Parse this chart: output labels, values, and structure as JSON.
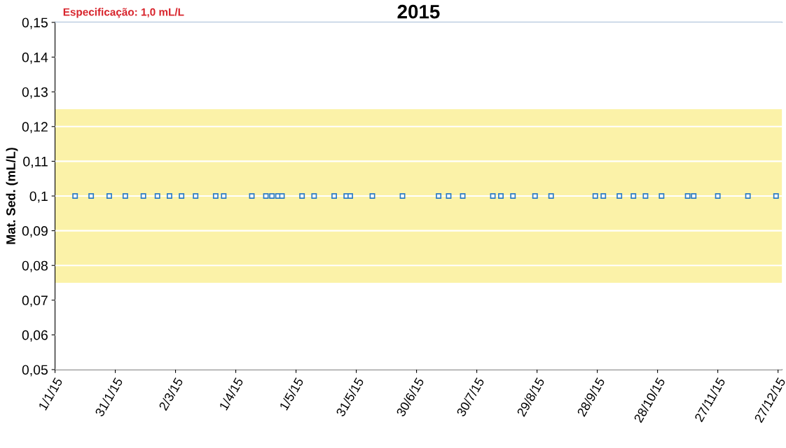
{
  "chart_data": {
    "type": "scatter",
    "title": "2015",
    "ylabel": "Mat. Sed. (mL/L)",
    "annotations": [
      "Especificação: 1,0 mL/L"
    ],
    "marker": "square",
    "grid": "y",
    "series": [
      {
        "color": "#2b7bc4",
        "x": [
          "2015-01-11",
          "2015-01-19",
          "2015-01-28",
          "2015-02-05",
          "2015-02-14",
          "2015-02-21",
          "2015-02-27",
          "2015-03-05",
          "2015-03-12",
          "2015-03-22",
          "2015-03-26",
          "2015-04-09",
          "2015-04-16",
          "2015-04-19",
          "2015-04-22",
          "2015-04-24",
          "2015-05-04",
          "2015-05-10",
          "2015-05-20",
          "2015-05-26",
          "2015-05-28",
          "2015-06-08",
          "2015-06-23",
          "2015-07-11",
          "2015-07-16",
          "2015-07-23",
          "2015-08-07",
          "2015-08-11",
          "2015-08-17",
          "2015-08-28",
          "2015-09-05",
          "2015-09-27",
          "2015-10-01",
          "2015-10-09",
          "2015-10-16",
          "2015-10-22",
          "2015-10-30",
          "2015-11-12",
          "2015-11-15",
          "2015-11-27",
          "2015-12-12",
          "2015-12-26"
        ],
        "values": [
          0.1,
          0.1,
          0.1,
          0.1,
          0.1,
          0.1,
          0.1,
          0.1,
          0.1,
          0.1,
          0.1,
          0.1,
          0.1,
          0.1,
          0.1,
          0.1,
          0.1,
          0.1,
          0.1,
          0.1,
          0.1,
          0.1,
          0.1,
          0.1,
          0.1,
          0.1,
          0.1,
          0.1,
          0.1,
          0.1,
          0.1,
          0.1,
          0.1,
          0.1,
          0.1,
          0.1,
          0.1,
          0.1,
          0.1,
          0.1,
          0.1,
          0.1
        ]
      }
    ],
    "bands": [
      {
        "axis": "y",
        "from": 0.075,
        "to": 0.125,
        "color": "#fbf2a8"
      }
    ],
    "xlim": [
      "2015-01-01",
      "2015-12-29"
    ],
    "xticks": [
      {
        "value": "2015-01-01",
        "label": "1/1/15"
      },
      {
        "value": "2015-01-31",
        "label": "31/1/15"
      },
      {
        "value": "2015-03-02",
        "label": "2/3/15"
      },
      {
        "value": "2015-04-01",
        "label": "1/4/15"
      },
      {
        "value": "2015-05-01",
        "label": "1/5/15"
      },
      {
        "value": "2015-05-31",
        "label": "31/5/15"
      },
      {
        "value": "2015-06-30",
        "label": "30/6/15"
      },
      {
        "value": "2015-07-30",
        "label": "30/7/15"
      },
      {
        "value": "2015-08-29",
        "label": "29/8/15"
      },
      {
        "value": "2015-09-28",
        "label": "28/9/15"
      },
      {
        "value": "2015-10-28",
        "label": "28/10/15"
      },
      {
        "value": "2015-11-27",
        "label": "27/11/15"
      },
      {
        "value": "2015-12-27",
        "label": "27/12/15"
      }
    ],
    "ylim": [
      0.05,
      0.15
    ],
    "yticks": [
      {
        "value": 0.05,
        "label": "0,05"
      },
      {
        "value": 0.06,
        "label": "0,06"
      },
      {
        "value": 0.07,
        "label": "0,07"
      },
      {
        "value": 0.08,
        "label": "0,08"
      },
      {
        "value": 0.09,
        "label": "0,09"
      },
      {
        "value": 0.1,
        "label": "0,1"
      },
      {
        "value": 0.11,
        "label": "0,11"
      },
      {
        "value": 0.12,
        "label": "0,12"
      },
      {
        "value": 0.13,
        "label": "0,13"
      },
      {
        "value": 0.14,
        "label": "0,14"
      },
      {
        "value": 0.15,
        "label": "0,15"
      }
    ]
  }
}
